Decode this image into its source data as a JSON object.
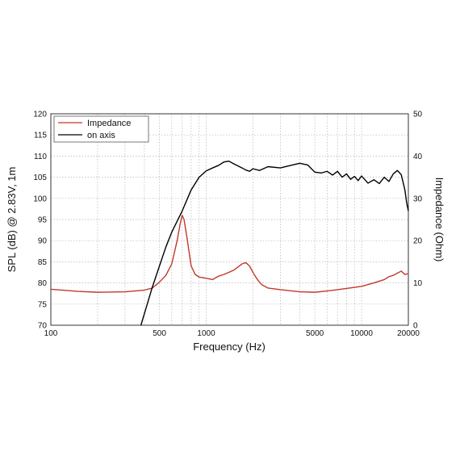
{
  "chart_data": {
    "type": "line",
    "title": "",
    "xlabel": "Frequency (Hz)",
    "ylabel": "SPL (dB) @ 2.83V, 1m",
    "y2label": "Impedance (Ohm)",
    "xscale": "log",
    "xlim": [
      100,
      20000
    ],
    "ylim": [
      70,
      120
    ],
    "y2lim": [
      0,
      50
    ],
    "grid": true,
    "legend_position": "top-left",
    "x_ticks": [
      100,
      500,
      1000,
      5000,
      10000,
      20000
    ],
    "x_tick_labels": [
      "100",
      "500",
      "1000",
      "5000",
      "10000",
      "20000"
    ],
    "y_ticks": [
      70,
      75,
      80,
      85,
      90,
      95,
      100,
      105,
      110,
      115,
      120
    ],
    "y2_ticks": [
      0,
      10,
      20,
      30,
      40,
      50
    ],
    "series": [
      {
        "name": "Impedance",
        "axis": "right",
        "color": "#c0392b",
        "x": [
          100,
          150,
          200,
          300,
          400,
          450,
          500,
          550,
          600,
          650,
          680,
          700,
          720,
          750,
          800,
          850,
          900,
          1000,
          1100,
          1200,
          1300,
          1500,
          1700,
          1800,
          1900,
          2000,
          2100,
          2200,
          2300,
          2500,
          3000,
          4000,
          5000,
          6000,
          7000,
          8000,
          10000,
          12000,
          14000,
          15000,
          16000,
          17000,
          18000,
          19000,
          20000
        ],
        "y": [
          8.5,
          8.0,
          7.8,
          7.9,
          8.3,
          8.8,
          10.2,
          11.8,
          14.5,
          20,
          24,
          26,
          25,
          21,
          14,
          12.0,
          11.4,
          11.1,
          10.8,
          11.6,
          12.0,
          13.0,
          14.5,
          14.8,
          14.0,
          12.5,
          11.2,
          10.2,
          9.5,
          8.8,
          8.4,
          7.9,
          7.8,
          8.1,
          8.4,
          8.7,
          9.2,
          10.0,
          10.8,
          11.5,
          11.8,
          12.3,
          12.8,
          12.0,
          12.2
        ]
      },
      {
        "name": "on axis",
        "axis": "left",
        "color": "#000000",
        "x": [
          380,
          450,
          500,
          550,
          600,
          700,
          800,
          900,
          1000,
          1100,
          1200,
          1300,
          1400,
          1500,
          1700,
          1800,
          1900,
          2000,
          2200,
          2500,
          3000,
          3500,
          4000,
          4500,
          5000,
          5500,
          6000,
          6500,
          7000,
          7500,
          8000,
          8500,
          9000,
          9500,
          10000,
          11000,
          12000,
          13000,
          14000,
          15000,
          16000,
          17000,
          18000,
          19000,
          19500,
          20000
        ],
        "y": [
          70,
          79,
          84,
          88.5,
          92,
          97,
          102,
          105,
          106.5,
          107.2,
          107.8,
          108.6,
          108.8,
          108.2,
          107.2,
          106.7,
          106.4,
          107.0,
          106.6,
          107.5,
          107.2,
          107.8,
          108.3,
          107.9,
          106.2,
          106.0,
          106.4,
          105.5,
          106.4,
          105.0,
          105.8,
          104.5,
          105.2,
          104.2,
          105.3,
          103.6,
          104.4,
          103.5,
          105.0,
          104.0,
          105.8,
          106.6,
          105.6,
          102,
          99,
          97
        ]
      }
    ]
  }
}
